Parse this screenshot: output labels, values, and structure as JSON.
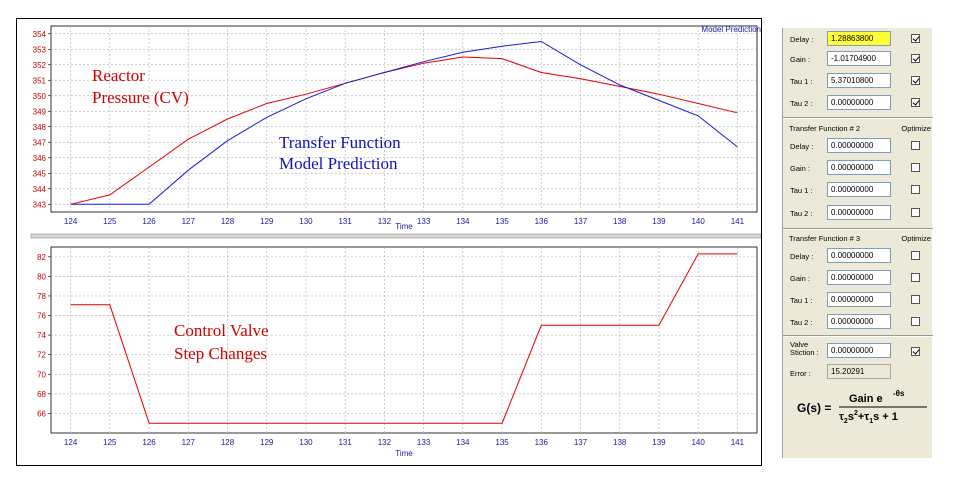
{
  "chart_data": [
    {
      "type": "line",
      "xlabel": "Time",
      "x": [
        124,
        125,
        126,
        127,
        128,
        129,
        130,
        131,
        132,
        133,
        134,
        135,
        136,
        137,
        138,
        139,
        140,
        141
      ],
      "xlim": [
        123.5,
        141.5
      ],
      "ylim": [
        342.5,
        354.5
      ],
      "yticks": [
        343,
        344,
        345,
        346,
        347,
        348,
        349,
        350,
        351,
        352,
        353,
        354
      ],
      "grid": true,
      "legend_text": "Model Prediction",
      "legend_position": "top-right",
      "annotations": [
        {
          "lines": [
            "Reactor",
            "Pressure (CV)"
          ],
          "color": "#d00000"
        },
        {
          "lines": [
            "Transfer Function",
            "Model Prediction"
          ],
          "color": "#1010c0"
        }
      ],
      "series": [
        {
          "color": "#e00000",
          "values": [
            343.0,
            343.6,
            345.4,
            347.2,
            348.5,
            349.5,
            350.1,
            350.8,
            351.5,
            352.1,
            352.5,
            352.4,
            351.5,
            351.1,
            350.6,
            350.1,
            349.5,
            348.9
          ]
        },
        {
          "color": "#1818e0",
          "values": [
            343.0,
            343.0,
            343.0,
            345.2,
            347.1,
            348.6,
            349.8,
            350.8,
            351.5,
            352.2,
            352.8,
            353.2,
            353.5,
            352.0,
            350.7,
            349.7,
            348.7,
            346.7
          ]
        }
      ]
    },
    {
      "type": "line",
      "xlabel": "Time",
      "x": [
        124,
        125,
        126,
        127,
        128,
        129,
        130,
        131,
        132,
        133,
        134,
        135,
        136,
        137,
        138,
        139,
        140,
        141
      ],
      "xlim": [
        123.5,
        141.5
      ],
      "ylim": [
        64,
        83
      ],
      "yticks": [
        66,
        68,
        70,
        72,
        74,
        76,
        78,
        80,
        82
      ],
      "grid": true,
      "annotations": [
        {
          "lines": [
            "Control Valve",
            "Step Changes"
          ],
          "color": "#d00000"
        }
      ],
      "series": [
        {
          "color": "#e00000",
          "values": [
            77.1,
            77.1,
            65.0,
            65.0,
            65.0,
            65.0,
            65.0,
            65.0,
            65.0,
            65.0,
            65.0,
            65.0,
            75.0,
            75.0,
            75.0,
            75.0,
            82.3,
            82.3
          ]
        }
      ]
    }
  ],
  "panel": {
    "tf1": {
      "rows": [
        {
          "label": "Delay :",
          "value": "1.28863800",
          "checked": true,
          "highlight": true
        },
        {
          "label": "Gain  :",
          "value": "-1.01704900",
          "checked": true
        },
        {
          "label": "Tau 1 :",
          "value": "5.37010800",
          "checked": true
        },
        {
          "label": "Tau 2 :",
          "value": "0.00000000",
          "checked": true
        }
      ]
    },
    "tf2": {
      "title": "Transfer Function # 2",
      "optimize": "Optimize",
      "rows": [
        {
          "label": "Delay :",
          "value": "0.00000000",
          "checked": false
        },
        {
          "label": "Gain  :",
          "value": "0.00000000",
          "checked": false
        },
        {
          "label": "Tau 1 :",
          "value": "0.00000000",
          "checked": false
        },
        {
          "label": "Tau 2 :",
          "value": "0.00000000",
          "checked": false
        }
      ]
    },
    "tf3": {
      "title": "Transfer Function # 3",
      "optimize": "Optimize",
      "rows": [
        {
          "label": "Delay :",
          "value": "0.00000000",
          "checked": false
        },
        {
          "label": "Gain  :",
          "value": "0.00000000",
          "checked": false
        },
        {
          "label": "Tau 1 :",
          "value": "0.00000000",
          "checked": false
        },
        {
          "label": "Tau 2 :",
          "value": "0.00000000",
          "checked": false
        }
      ]
    },
    "stiction": {
      "label_line1": "Valve",
      "label_line2": "Stiction :",
      "value": "0.00000000",
      "checked": true
    },
    "error": {
      "label": "Error :",
      "value": "15.20291"
    },
    "formula": {
      "lhs": "G(s) =",
      "num": "Gain e",
      "num_sup": "-θs",
      "den": "τ",
      "den_full": [
        "τ",
        "2",
        "s",
        "2",
        "+τ",
        "1",
        "s + 1"
      ]
    }
  }
}
